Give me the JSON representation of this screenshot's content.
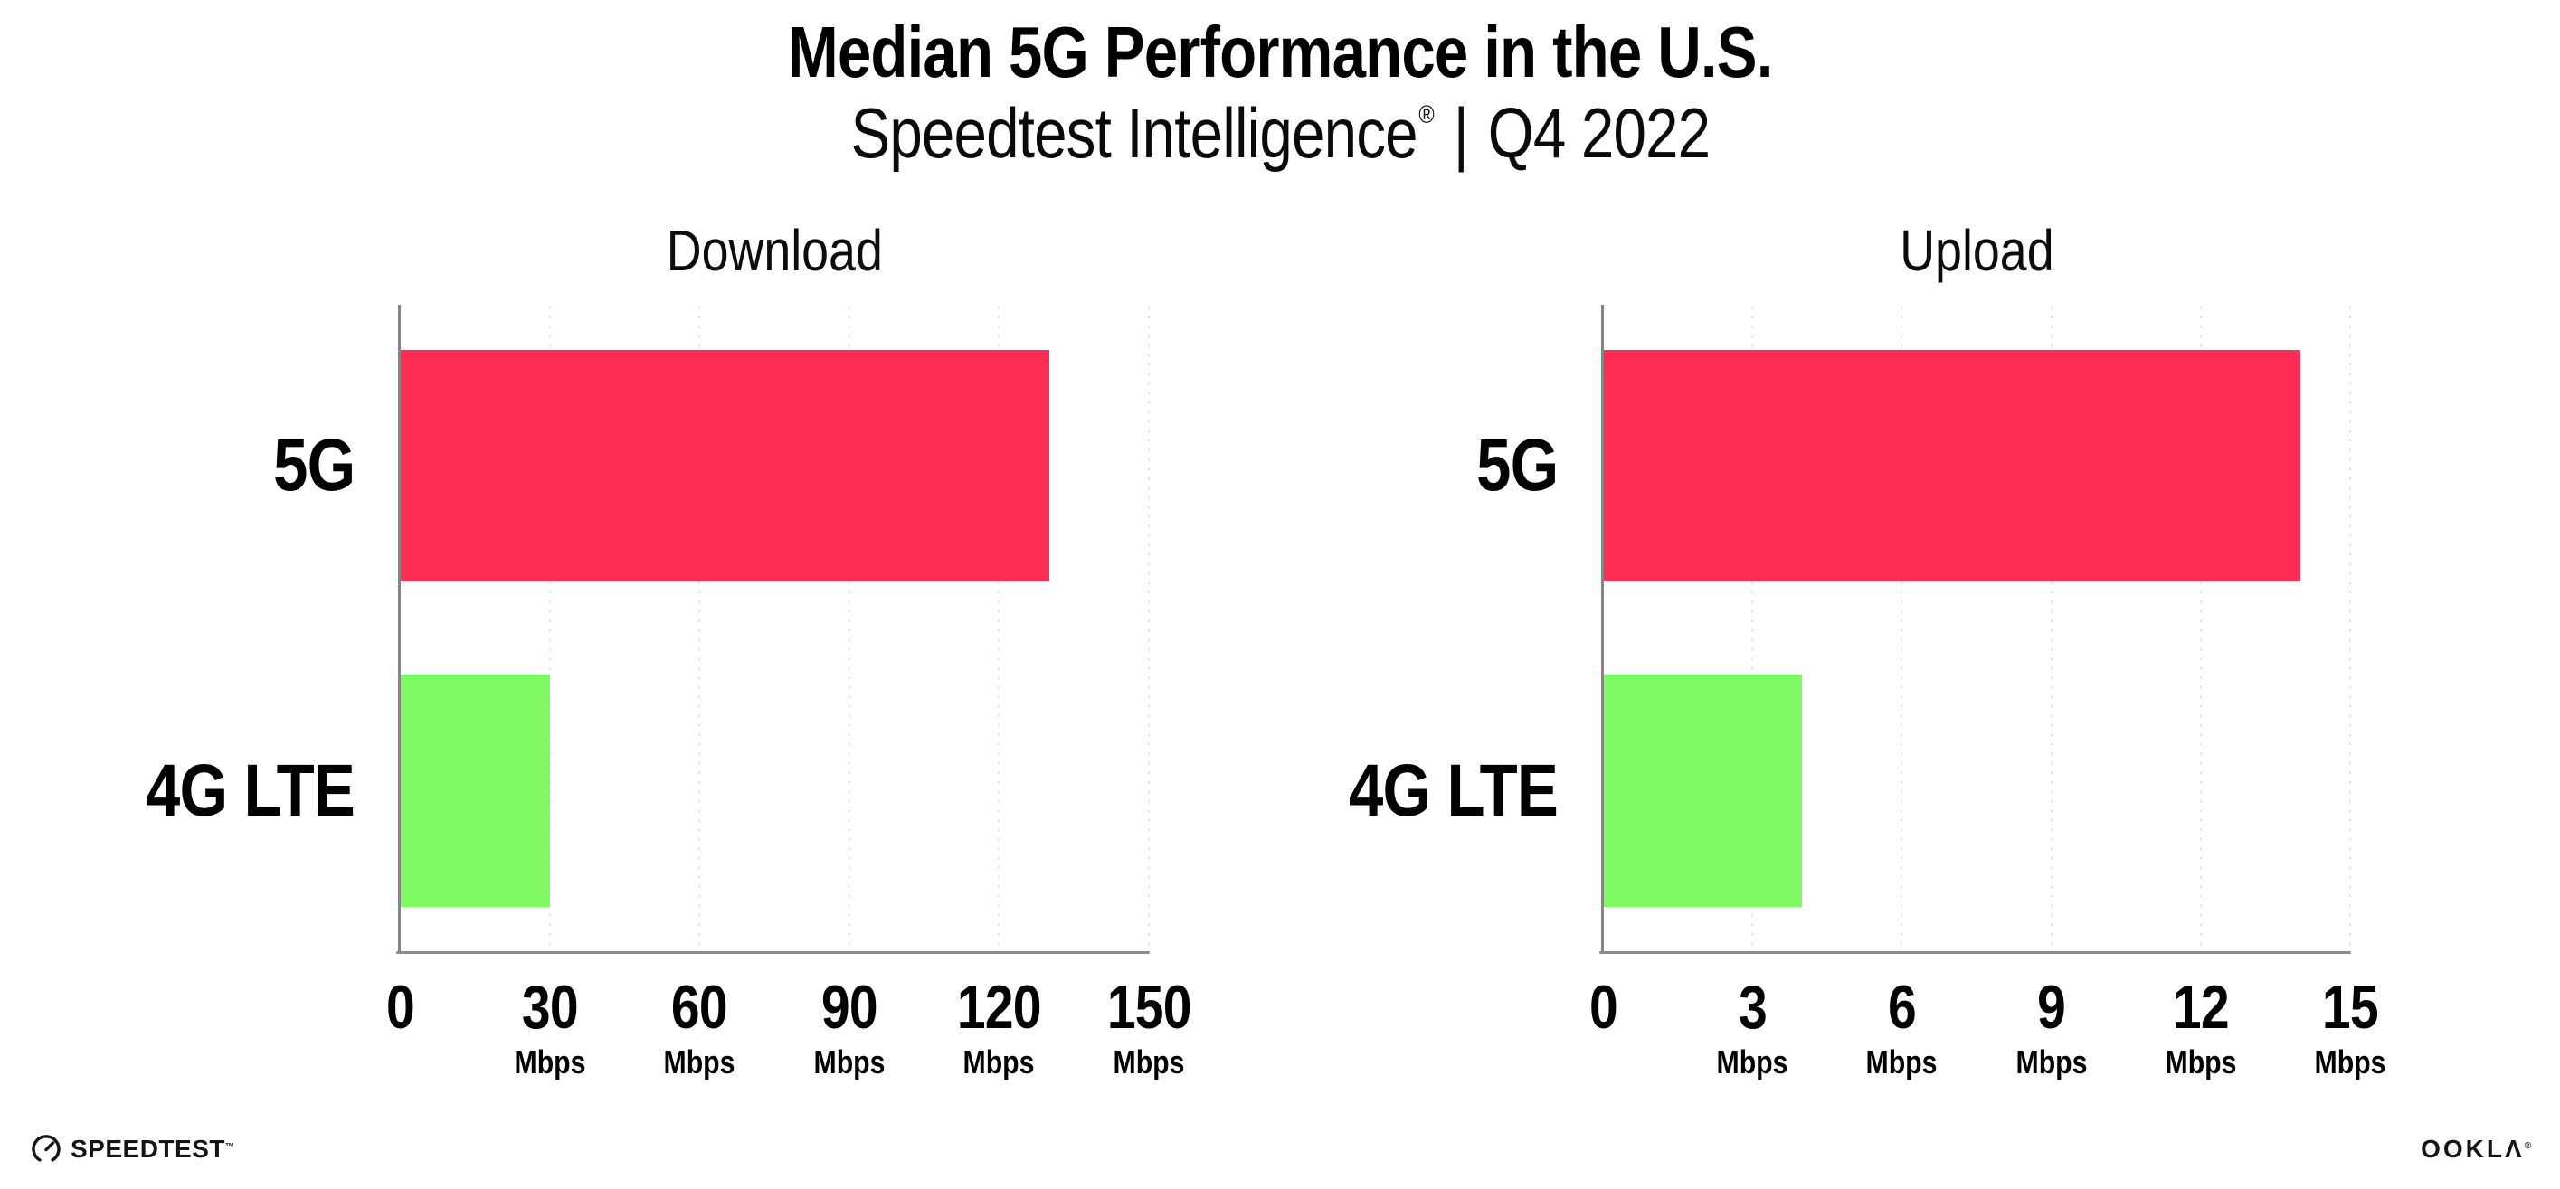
{
  "header": {
    "title": "Median 5G Performance in the U.S.",
    "subtitle_brand": "Speedtest Intelligence",
    "subtitle_reg": "®",
    "subtitle_sep": "|",
    "subtitle_period": "Q4 2022"
  },
  "footer": {
    "speedtest_label": "SPEEDTEST",
    "speedtest_tm": "™",
    "ookla_label": "OOKLΛ",
    "ookla_reg": "®"
  },
  "colors": {
    "bar_5g": "#FF2D55",
    "bar_4g_lte": "#80FB66",
    "axis": "#8C8C8C",
    "gridline": "#E2E2EA",
    "text": "#000000"
  },
  "chart_data": [
    {
      "type": "bar",
      "orientation": "horizontal",
      "title": "Download",
      "categories": [
        "5G",
        "4G LTE"
      ],
      "values": [
        130,
        30
      ],
      "unit": "Mbps",
      "xlim": [
        0,
        150
      ],
      "xticks": [
        0,
        30,
        60,
        90,
        120,
        150
      ],
      "bar_colors": [
        "#FF2D55",
        "#80FB66"
      ],
      "grid": "vertical dotted at every tick",
      "legend": "none"
    },
    {
      "type": "bar",
      "orientation": "horizontal",
      "title": "Upload",
      "categories": [
        "5G",
        "4G LTE"
      ],
      "values": [
        14,
        4
      ],
      "unit": "Mbps",
      "xlim": [
        0,
        15
      ],
      "xticks": [
        0,
        3,
        6,
        9,
        12,
        15
      ],
      "bar_colors": [
        "#FF2D55",
        "#80FB66"
      ],
      "grid": "vertical dotted at every tick",
      "legend": "none"
    }
  ]
}
